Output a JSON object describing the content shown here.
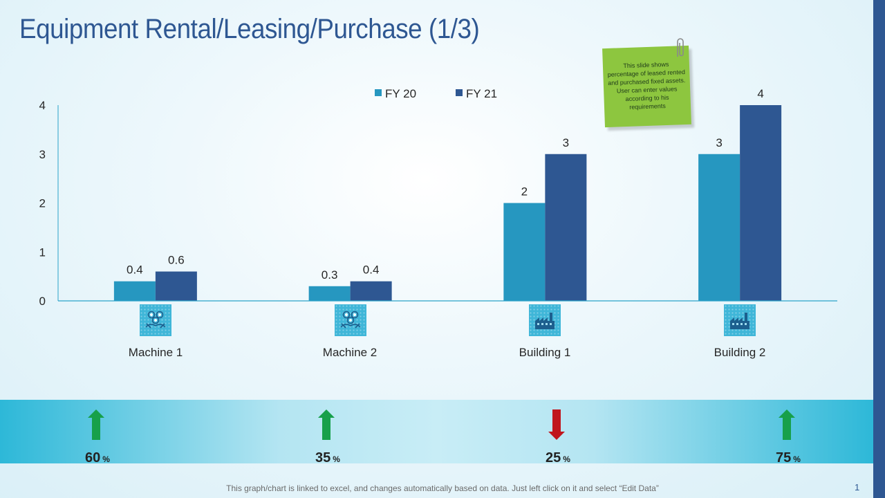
{
  "title": "Equipment Rental/Leasing/Purchase (1/3)",
  "note": "This slide shows percentage of leased rented and purchased fixed assets. User can enter values according to his requirements",
  "footer": "This graph/chart is linked to excel, and changes automatically based on data. Just left click on it and select “Edit Data”",
  "page_number": "1",
  "chart_data": {
    "type": "bar",
    "categories": [
      "Machine 1",
      "Machine 2",
      "Building 1",
      "Building 2"
    ],
    "series": [
      {
        "name": "FY 20",
        "values": [
          0.4,
          0.3,
          2,
          3
        ],
        "color": "#2697c0"
      },
      {
        "name": "FY 21",
        "values": [
          0.6,
          0.4,
          3,
          4
        ],
        "color": "#2e5792"
      }
    ],
    "yticks": [
      "0",
      "1",
      "2",
      "3",
      "4"
    ],
    "ylim": [
      0,
      4
    ],
    "legend_position": "top",
    "grid": false,
    "data_labels": true
  },
  "category_icons": [
    "handshake-gears-icon",
    "handshake-gears-icon",
    "factory-icon",
    "factory-icon"
  ],
  "kpis": [
    {
      "value": "60",
      "unit": "%",
      "direction": "up",
      "icon": "arrow-up-icon",
      "color": "#17a04a"
    },
    {
      "value": "35",
      "unit": "%",
      "direction": "up",
      "icon": "arrow-up-icon",
      "color": "#17a04a"
    },
    {
      "value": "25",
      "unit": "%",
      "direction": "down",
      "icon": "arrow-down-icon",
      "color": "#c0161d"
    },
    {
      "value": "75",
      "unit": "%",
      "direction": "up",
      "icon": "arrow-up-icon",
      "color": "#17a04a"
    }
  ]
}
